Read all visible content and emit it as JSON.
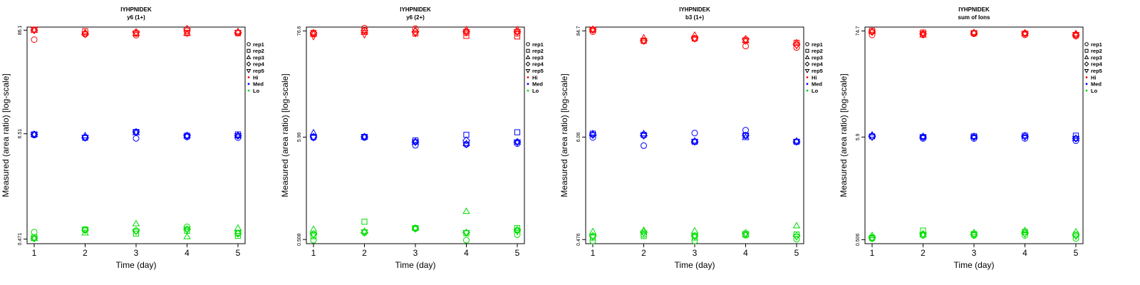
{
  "legend": {
    "shapes": [
      {
        "name": "rep1",
        "marker": "circle"
      },
      {
        "name": "rep2",
        "marker": "square"
      },
      {
        "name": "rep3",
        "marker": "triangle-up"
      },
      {
        "name": "rep4",
        "marker": "diamond"
      },
      {
        "name": "rep5",
        "marker": "triangle-down"
      }
    ],
    "colors": [
      {
        "name": "Hi",
        "color": "#ff0000"
      },
      {
        "name": "Med",
        "color": "#0000ff"
      },
      {
        "name": "Lo",
        "color": "#00dd00"
      }
    ]
  },
  "chart_data": [
    {
      "type": "scatter",
      "title": "IYHPNIDEK",
      "subtitle": "y6 (1+)",
      "xlabel": "Time (day)",
      "ylabel": "Measured (area ratio) [log-scale]",
      "yscale": "log",
      "x": [
        1,
        2,
        3,
        4,
        5
      ],
      "ylim": [
        0.42,
        93
      ],
      "yticks": [
        0.471,
        6.51,
        86.1
      ],
      "ytick_labels": [
        "0.471",
        "6.51",
        "86.1"
      ],
      "series": [
        {
          "name": "Hi rep1",
          "level": "Hi",
          "marker": "circle",
          "values": [
            68,
            78,
            76,
            85,
            80
          ]
        },
        {
          "name": "Hi rep2",
          "level": "Hi",
          "marker": "square",
          "values": [
            87,
            84,
            79,
            80,
            80
          ]
        },
        {
          "name": "Hi rep3",
          "level": "Hi",
          "marker": "triangle-up",
          "values": [
            86,
            81,
            80,
            80,
            83
          ]
        },
        {
          "name": "Hi rep4",
          "level": "Hi",
          "marker": "diamond",
          "values": [
            86,
            78,
            82,
            89,
            81
          ]
        },
        {
          "name": "Hi rep5",
          "level": "Hi",
          "marker": "triangle-down",
          "values": [
            87,
            78,
            80,
            80,
            81
          ]
        },
        {
          "name": "Med rep1",
          "level": "Med",
          "marker": "circle",
          "values": [
            6.3,
            5.9,
            5.8,
            6.0,
            5.9
          ]
        },
        {
          "name": "Med rep2",
          "level": "Med",
          "marker": "square",
          "values": [
            6.4,
            5.9,
            6.8,
            6.2,
            6.4
          ]
        },
        {
          "name": "Med rep3",
          "level": "Med",
          "marker": "triangle-up",
          "values": [
            6.4,
            6.2,
            6.7,
            6.2,
            6.2
          ]
        },
        {
          "name": "Med rep4",
          "level": "Med",
          "marker": "diamond",
          "values": [
            6.4,
            5.9,
            6.8,
            6.2,
            6.2
          ]
        },
        {
          "name": "Med rep5",
          "level": "Med",
          "marker": "triangle-down",
          "values": [
            6.4,
            5.9,
            6.8,
            6.1,
            6.2
          ]
        },
        {
          "name": "Lo rep1",
          "level": "Lo",
          "marker": "circle",
          "values": [
            0.56,
            0.59,
            0.58,
            0.64,
            0.54
          ]
        },
        {
          "name": "Lo rep2",
          "level": "Lo",
          "marker": "square",
          "values": [
            0.49,
            0.6,
            0.54,
            0.58,
            0.51
          ]
        },
        {
          "name": "Lo rep3",
          "level": "Lo",
          "marker": "triangle-up",
          "values": [
            0.48,
            0.55,
            0.69,
            0.5,
            0.62
          ]
        },
        {
          "name": "Lo rep4",
          "level": "Lo",
          "marker": "diamond",
          "values": [
            0.48,
            0.59,
            0.58,
            0.6,
            0.54
          ]
        },
        {
          "name": "Lo rep5",
          "level": "Lo",
          "marker": "triangle-down",
          "values": [
            0.48,
            0.59,
            0.57,
            0.6,
            0.55
          ]
        }
      ]
    },
    {
      "type": "scatter",
      "title": "IYHPNIDEK",
      "subtitle": "y6 (2+)",
      "xlabel": "Time (day)",
      "ylabel": "Measured (area ratio) [log-scale]",
      "yscale": "log",
      "x": [
        1,
        2,
        3,
        4,
        5
      ],
      "ylim": [
        0.46,
        84
      ],
      "yticks": [
        0.508,
        5.96,
        76.6
      ],
      "ytick_labels": [
        "0.508",
        "5.96",
        "76.6"
      ],
      "series": [
        {
          "name": "Hi rep1",
          "level": "Hi",
          "marker": "circle",
          "values": [
            71,
            82,
            81,
            73,
            72
          ]
        },
        {
          "name": "Hi rep2",
          "level": "Hi",
          "marker": "square",
          "values": [
            73,
            77,
            72,
            68,
            67
          ]
        },
        {
          "name": "Hi rep3",
          "level": "Hi",
          "marker": "triangle-up",
          "values": [
            71,
            74,
            78,
            79,
            79
          ]
        },
        {
          "name": "Hi rep4",
          "level": "Hi",
          "marker": "diamond",
          "values": [
            73,
            77,
            75,
            75,
            75
          ]
        },
        {
          "name": "Hi rep5",
          "level": "Hi",
          "marker": "triangle-down",
          "values": [
            67,
            70,
            72,
            75,
            75
          ]
        },
        {
          "name": "Med rep1",
          "level": "Med",
          "marker": "circle",
          "values": [
            5.9,
            5.9,
            4.9,
            5.0,
            5.1
          ]
        },
        {
          "name": "Med rep2",
          "level": "Med",
          "marker": "square",
          "values": [
            6.0,
            6.0,
            5.5,
            6.3,
            6.7
          ]
        },
        {
          "name": "Med rep3",
          "level": "Med",
          "marker": "triangle-up",
          "values": [
            6.6,
            6.0,
            5.3,
            5.1,
            5.3
          ]
        },
        {
          "name": "Med rep4",
          "level": "Med",
          "marker": "diamond",
          "values": [
            6.0,
            6.0,
            5.3,
            5.5,
            5.3
          ]
        },
        {
          "name": "Med rep5",
          "level": "Med",
          "marker": "triangle-down",
          "values": [
            5.9,
            6.0,
            5.3,
            5.0,
            5.3
          ]
        },
        {
          "name": "Lo rep1",
          "level": "Lo",
          "marker": "circle",
          "values": [
            0.5,
            0.6,
            0.66,
            0.5,
            0.57
          ]
        },
        {
          "name": "Lo rep2",
          "level": "Lo",
          "marker": "square",
          "values": [
            0.55,
            0.78,
            0.67,
            0.59,
            0.67
          ]
        },
        {
          "name": "Lo rep3",
          "level": "Lo",
          "marker": "triangle-up",
          "values": [
            0.65,
            0.62,
            0.67,
            1.0,
            0.64
          ]
        },
        {
          "name": "Lo rep4",
          "level": "Lo",
          "marker": "diamond",
          "values": [
            0.58,
            0.6,
            0.66,
            0.6,
            0.64
          ]
        },
        {
          "name": "Lo rep5",
          "level": "Lo",
          "marker": "triangle-down",
          "values": [
            0.57,
            0.61,
            0.66,
            0.6,
            0.62
          ]
        }
      ]
    },
    {
      "type": "scatter",
      "title": "IYHPNIDEK",
      "subtitle": "b3 (1+)",
      "xlabel": "Time (day)",
      "ylabel": "Measured (area ratio) [log-scale]",
      "yscale": "log",
      "x": [
        1,
        2,
        3,
        4,
        5
      ],
      "ylim": [
        0.43,
        93
      ],
      "yticks": [
        0.476,
        6.06,
        84.7
      ],
      "ytick_labels": [
        "0.476",
        "6.06",
        "84.7"
      ],
      "series": [
        {
          "name": "Hi rep1",
          "level": "Hi",
          "marker": "circle",
          "values": [
            83,
            66,
            70,
            58,
            56
          ]
        },
        {
          "name": "Hi rep2",
          "level": "Hi",
          "marker": "square",
          "values": [
            87,
            66,
            70,
            67,
            63
          ]
        },
        {
          "name": "Hi rep3",
          "level": "Hi",
          "marker": "triangle-up",
          "values": [
            88,
            71,
            76,
            67,
            63
          ]
        },
        {
          "name": "Hi rep4",
          "level": "Hi",
          "marker": "diamond",
          "values": [
            87,
            66,
            70,
            69,
            60
          ]
        },
        {
          "name": "Hi rep5",
          "level": "Hi",
          "marker": "triangle-down",
          "values": [
            87,
            66,
            70,
            66,
            59
          ]
        },
        {
          "name": "Med rep1",
          "level": "Med",
          "marker": "circle",
          "values": [
            6.0,
            4.9,
            6.7,
            7.2,
            5.4
          ]
        },
        {
          "name": "Med rep2",
          "level": "Med",
          "marker": "square",
          "values": [
            6.6,
            6.4,
            5.4,
            6.3,
            5.4
          ]
        },
        {
          "name": "Med rep3",
          "level": "Med",
          "marker": "triangle-up",
          "values": [
            6.6,
            6.6,
            5.5,
            6.0,
            5.5
          ]
        },
        {
          "name": "Med rep4",
          "level": "Med",
          "marker": "diamond",
          "values": [
            6.4,
            6.3,
            5.4,
            6.3,
            5.4
          ]
        },
        {
          "name": "Med rep5",
          "level": "Med",
          "marker": "triangle-down",
          "values": [
            6.4,
            6.3,
            5.4,
            6.3,
            5.4
          ]
        },
        {
          "name": "Lo rep1",
          "level": "Lo",
          "marker": "circle",
          "values": [
            0.46,
            0.54,
            0.46,
            0.53,
            0.48
          ]
        },
        {
          "name": "Lo rep2",
          "level": "Lo",
          "marker": "square",
          "values": [
            0.5,
            0.52,
            0.5,
            0.54,
            0.54
          ]
        },
        {
          "name": "Lo rep3",
          "level": "Lo",
          "marker": "triangle-up",
          "values": [
            0.58,
            0.6,
            0.59,
            0.54,
            0.67
          ]
        },
        {
          "name": "Lo rep4",
          "level": "Lo",
          "marker": "diamond",
          "values": [
            0.52,
            0.57,
            0.52,
            0.56,
            0.52
          ]
        },
        {
          "name": "Lo rep5",
          "level": "Lo",
          "marker": "triangle-down",
          "values": [
            0.51,
            0.56,
            0.52,
            0.55,
            0.51
          ]
        }
      ]
    },
    {
      "type": "scatter",
      "title": "IYHPNIDEK",
      "subtitle": "sum of Ions",
      "xlabel": "Time (day)",
      "ylabel": "Measured (area ratio) [log-scale]",
      "yscale": "log",
      "x": [
        1,
        2,
        3,
        4,
        5
      ],
      "ylim": [
        0.46,
        82
      ],
      "yticks": [
        0.506,
        5.9,
        74.7
      ],
      "ytick_labels": [
        "0.506",
        "5.9",
        "74.7"
      ],
      "series": [
        {
          "name": "Hi rep1",
          "level": "Hi",
          "marker": "circle",
          "values": [
            68,
            68,
            70,
            68,
            66
          ]
        },
        {
          "name": "Hi rep2",
          "level": "Hi",
          "marker": "square",
          "values": [
            75,
            72,
            71,
            70,
            68
          ]
        },
        {
          "name": "Hi rep3",
          "level": "Hi",
          "marker": "triangle-up",
          "values": [
            74,
            68,
            72,
            71,
            70
          ]
        },
        {
          "name": "Hi rep4",
          "level": "Hi",
          "marker": "diamond",
          "values": [
            73,
            70,
            71,
            71,
            68
          ]
        },
        {
          "name": "Hi rep5",
          "level": "Hi",
          "marker": "triangle-down",
          "values": [
            73,
            70,
            71,
            70,
            68
          ]
        },
        {
          "name": "Med rep1",
          "level": "Med",
          "marker": "circle",
          "values": [
            6.0,
            5.7,
            5.7,
            5.7,
            5.4
          ]
        },
        {
          "name": "Med rep2",
          "level": "Med",
          "marker": "square",
          "values": [
            6.0,
            5.9,
            6.0,
            6.1,
            6.1
          ]
        },
        {
          "name": "Med rep3",
          "level": "Med",
          "marker": "triangle-up",
          "values": [
            6.2,
            6.0,
            6.0,
            6.1,
            5.7
          ]
        },
        {
          "name": "Med rep4",
          "level": "Med",
          "marker": "diamond",
          "values": [
            6.0,
            5.9,
            5.9,
            6.0,
            5.7
          ]
        },
        {
          "name": "Med rep5",
          "level": "Med",
          "marker": "triangle-down",
          "values": [
            5.9,
            5.9,
            5.9,
            5.9,
            5.7
          ]
        },
        {
          "name": "Lo rep1",
          "level": "Lo",
          "marker": "circle",
          "values": [
            0.52,
            0.56,
            0.56,
            0.56,
            0.52
          ]
        },
        {
          "name": "Lo rep2",
          "level": "Lo",
          "marker": "square",
          "values": [
            0.53,
            0.63,
            0.58,
            0.61,
            0.57
          ]
        },
        {
          "name": "Lo rep3",
          "level": "Lo",
          "marker": "triangle-up",
          "values": [
            0.56,
            0.57,
            0.6,
            0.63,
            0.61
          ]
        },
        {
          "name": "Lo rep4",
          "level": "Lo",
          "marker": "diamond",
          "values": [
            0.53,
            0.58,
            0.57,
            0.59,
            0.56
          ]
        },
        {
          "name": "Lo rep5",
          "level": "Lo",
          "marker": "triangle-down",
          "values": [
            0.52,
            0.57,
            0.57,
            0.58,
            0.55
          ]
        }
      ]
    }
  ]
}
